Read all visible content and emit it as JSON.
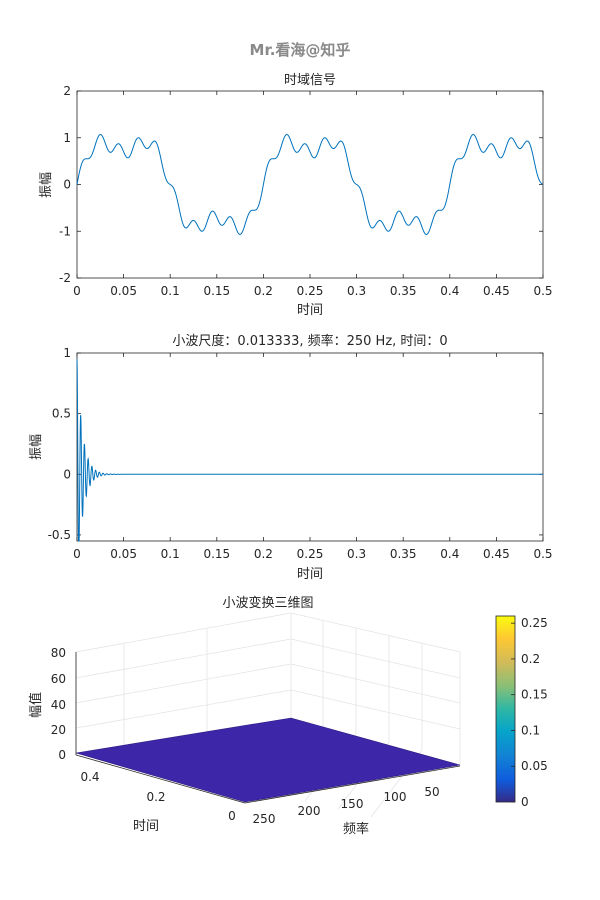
{
  "watermark": "Mr.看海@知乎",
  "chart_data": [
    {
      "type": "line",
      "title": "时域信号",
      "xlabel": "时间",
      "ylabel": "振幅",
      "xlim": [
        0,
        0.5
      ],
      "ylim": [
        -2,
        2
      ],
      "xticks": [
        "0",
        "0.05",
        "0.1",
        "0.15",
        "0.2",
        "0.25",
        "0.3",
        "0.35",
        "0.4",
        "0.45",
        "0.5"
      ],
      "yticks": [
        "-2",
        "-1",
        "0",
        "1",
        "2"
      ],
      "grid": false,
      "line_color": "#0072BD",
      "series": [
        {
          "components": [
            {
              "amplitude": 1.0,
              "frequency_hz": 5
            },
            {
              "amplitude": 0.3,
              "frequency_hz": 15
            },
            {
              "amplitude": 0.15,
              "frequency_hz": 50
            }
          ]
        }
      ]
    },
    {
      "type": "line",
      "title": "小波尺度：0.013333, 频率：250 Hz, 时间：0",
      "xlabel": "时间",
      "ylabel": "振幅",
      "xlim": [
        0,
        0.5
      ],
      "ylim": [
        -0.55,
        1
      ],
      "xticks": [
        "0",
        "0.05",
        "0.1",
        "0.15",
        "0.2",
        "0.25",
        "0.3",
        "0.35",
        "0.4",
        "0.45",
        "0.5"
      ],
      "yticks": [
        "-0.5",
        "0",
        "0.5",
        "1"
      ],
      "grid": false,
      "line_color": "#0072BD",
      "series": [
        {
          "wavelet": "damped oscillation at t = 0",
          "frequency_hz": 250,
          "scale": 0.013333,
          "peak": 0.95,
          "decay_to_zero_by": 0.03
        }
      ]
    },
    {
      "type": "surface",
      "title": "小波变换三维图",
      "xlabel": "频率",
      "ylabel": "时间",
      "zlabel": "幅值",
      "frequency_ticks": [
        "50",
        "100",
        "150",
        "200",
        "250"
      ],
      "time_ticks": [
        "0",
        "0.2",
        "0.4"
      ],
      "z_ticks": [
        "0",
        "20",
        "40",
        "60",
        "80"
      ],
      "zlim": [
        0,
        80
      ],
      "surface_value": 0,
      "surface_color": "#3E26A8",
      "colorbar": {
        "ticks": [
          "0",
          "0.05",
          "0.1",
          "0.15",
          "0.2",
          "0.25"
        ],
        "min": 0,
        "max": 0.26,
        "colormap": "parula"
      }
    }
  ]
}
